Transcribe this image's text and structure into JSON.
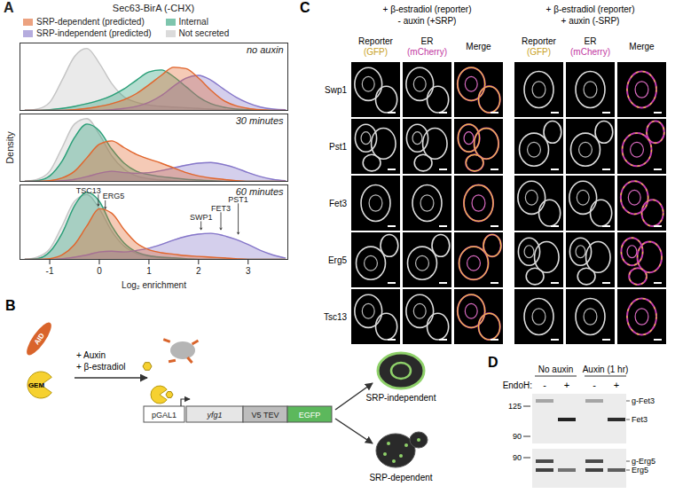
{
  "chart_data": [
    {
      "type": "area",
      "title": "Sec63-BirA (-CHX)",
      "subtitle": "no auxin",
      "legend": "top",
      "tick_labels": false,
      "xlim": [
        -1.6,
        3.8
      ],
      "ylim": [
        0,
        1
      ],
      "x": [
        -1.5,
        -1.25,
        -1,
        -0.75,
        -0.5,
        -0.25,
        0,
        0.25,
        0.5,
        0.75,
        1,
        1.25,
        1.5,
        1.75,
        2,
        2.25,
        2.5,
        2.75,
        3,
        3.25,
        3.5,
        3.75
      ],
      "series": [
        {
          "name": "SRP-dependent (predicted)",
          "color": "#e1662d",
          "values": [
            0,
            0,
            0,
            0,
            0.01,
            0.03,
            0.06,
            0.1,
            0.16,
            0.25,
            0.38,
            0.52,
            0.64,
            0.62,
            0.48,
            0.3,
            0.15,
            0.07,
            0.03,
            0.01,
            0,
            0
          ]
        },
        {
          "name": "SRP-independent (predicted)",
          "color": "#8576c9",
          "values": [
            0,
            0,
            0,
            0,
            0,
            0,
            0,
            0.01,
            0.03,
            0.06,
            0.12,
            0.22,
            0.36,
            0.48,
            0.52,
            0.45,
            0.32,
            0.2,
            0.11,
            0.05,
            0.02,
            0.01
          ]
        },
        {
          "name": "Internal",
          "color": "#2a9f78",
          "values": [
            0,
            0,
            0.01,
            0.03,
            0.06,
            0.1,
            0.15,
            0.22,
            0.32,
            0.45,
            0.57,
            0.6,
            0.5,
            0.35,
            0.2,
            0.1,
            0.05,
            0.02,
            0.01,
            0,
            0,
            0
          ]
        },
        {
          "name": "Not secreted",
          "color": "#c4c4c4",
          "values": [
            0,
            0.02,
            0.12,
            0.45,
            0.8,
            0.92,
            0.7,
            0.4,
            0.2,
            0.12,
            0.08,
            0.06,
            0.05,
            0.04,
            0.03,
            0.02,
            0.01,
            0.01,
            0,
            0,
            0,
            0
          ]
        }
      ]
    },
    {
      "type": "area",
      "subtitle": "30 minutes",
      "ylabel": "Density",
      "tick_labels": false,
      "xlim": [
        -1.6,
        3.8
      ],
      "ylim": [
        0,
        1
      ],
      "x": [
        -1.5,
        -1.25,
        -1,
        -0.75,
        -0.5,
        -0.25,
        0,
        0.25,
        0.5,
        0.75,
        1,
        1.25,
        1.5,
        1.75,
        2,
        2.25,
        2.5,
        2.75,
        3,
        3.25,
        3.5,
        3.75
      ],
      "series": [
        {
          "name": "SRP-dependent (predicted)",
          "color": "#e1662d",
          "values": [
            0,
            0,
            0.01,
            0.05,
            0.15,
            0.35,
            0.55,
            0.6,
            0.5,
            0.4,
            0.33,
            0.27,
            0.2,
            0.13,
            0.08,
            0.05,
            0.03,
            0.01,
            0,
            0,
            0,
            0
          ]
        },
        {
          "name": "SRP-independent (predicted)",
          "color": "#8576c9",
          "values": [
            0,
            0,
            0,
            0.01,
            0.03,
            0.07,
            0.12,
            0.15,
            0.13,
            0.12,
            0.13,
            0.16,
            0.2,
            0.24,
            0.27,
            0.28,
            0.25,
            0.2,
            0.13,
            0.07,
            0.03,
            0.01
          ]
        },
        {
          "name": "Internal",
          "color": "#2a9f78",
          "values": [
            0,
            0.01,
            0.08,
            0.3,
            0.65,
            0.85,
            0.75,
            0.48,
            0.27,
            0.15,
            0.1,
            0.07,
            0.05,
            0.03,
            0.02,
            0.01,
            0,
            0,
            0,
            0,
            0,
            0
          ]
        },
        {
          "name": "Not secreted",
          "color": "#c4c4c4",
          "values": [
            0,
            0.03,
            0.15,
            0.5,
            0.85,
            0.93,
            0.7,
            0.38,
            0.18,
            0.08,
            0.04,
            0.02,
            0.01,
            0,
            0,
            0,
            0,
            0,
            0,
            0,
            0,
            0
          ]
        }
      ]
    },
    {
      "type": "area",
      "subtitle": "60 minutes",
      "xlabel": "Log₂ enrichment",
      "tick_labels": "x",
      "xlim": [
        -1.6,
        3.8
      ],
      "ylim": [
        0,
        1
      ],
      "xticks": [
        -1,
        0,
        1,
        2,
        3
      ],
      "x": [
        -1.5,
        -1.25,
        -1,
        -0.75,
        -0.5,
        -0.25,
        0,
        0.25,
        0.5,
        0.75,
        1,
        1.25,
        1.5,
        1.75,
        2,
        2.25,
        2.5,
        2.75,
        3,
        3.25,
        3.5,
        3.75
      ],
      "series": [
        {
          "name": "SRP-dependent (predicted)",
          "color": "#e1662d",
          "values": [
            0,
            0,
            0.01,
            0.06,
            0.2,
            0.45,
            0.68,
            0.62,
            0.4,
            0.22,
            0.13,
            0.09,
            0.07,
            0.05,
            0.04,
            0.03,
            0.02,
            0.01,
            0,
            0,
            0,
            0
          ]
        },
        {
          "name": "SRP-independent (predicted)",
          "color": "#8576c9",
          "values": [
            0,
            0,
            0,
            0.01,
            0.03,
            0.06,
            0.1,
            0.11,
            0.1,
            0.12,
            0.15,
            0.2,
            0.26,
            0.31,
            0.34,
            0.35,
            0.32,
            0.27,
            0.2,
            0.12,
            0.06,
            0.02
          ]
        },
        {
          "name": "Internal",
          "color": "#2a9f78",
          "values": [
            0,
            0.01,
            0.1,
            0.35,
            0.72,
            0.9,
            0.78,
            0.45,
            0.22,
            0.1,
            0.05,
            0.03,
            0.02,
            0.01,
            0,
            0,
            0,
            0,
            0,
            0,
            0,
            0
          ]
        },
        {
          "name": "Not secreted",
          "color": "#c4c4c4",
          "values": [
            0,
            0.03,
            0.14,
            0.45,
            0.78,
            0.87,
            0.68,
            0.38,
            0.18,
            0.08,
            0.04,
            0.02,
            0.01,
            0,
            0,
            0,
            0,
            0,
            0,
            0,
            0,
            0
          ]
        }
      ],
      "annotations": [
        {
          "label": "TSC13",
          "x": -0.02
        },
        {
          "label": "ERG5",
          "x": 0.12
        },
        {
          "label": "SWP1",
          "x": 2.05
        },
        {
          "label": "FET3",
          "x": 2.45
        },
        {
          "label": "PST1",
          "x": 2.8
        }
      ]
    }
  ],
  "panels": {
    "A": {
      "letter": "A"
    },
    "B": {
      "letter": "B",
      "degron": "AID",
      "receptor": "GEM",
      "treatments": [
        "+ Auxin",
        "+ β-estradiol"
      ],
      "construct": [
        "pGAL1",
        "yfg1",
        "V5 TEV",
        "EGFP"
      ],
      "outcomes": [
        "SRP-independent",
        "SRP-dependent"
      ]
    },
    "C": {
      "letter": "C",
      "groups": [
        [
          "+ β-estradiol (reporter)",
          "- auxin (+SRP)"
        ],
        [
          "+ β-estradiol (reporter)",
          "+ auxin (-SRP)"
        ]
      ],
      "columns": [
        {
          "name": "Reporter",
          "channel": "(GFP)"
        },
        {
          "name": "ER",
          "channel": "(mCherry)"
        },
        {
          "name": "Merge"
        }
      ],
      "rows": [
        "Swp1",
        "Pst1",
        "Fet3",
        "Erg5",
        "Tsc13"
      ]
    },
    "D": {
      "letter": "D",
      "conditions": [
        "No auxin",
        "Auxin (1 hr)"
      ],
      "treatment_label": "EndoH:",
      "treatments": [
        "-",
        "+",
        "-",
        "+"
      ],
      "blots": [
        {
          "markers": [
            125,
            90
          ],
          "bands": [
            "g-Fet3",
            "Fet3"
          ]
        },
        {
          "markers": [
            90
          ],
          "bands": [
            "g-Erg5",
            "Erg5"
          ]
        }
      ]
    }
  }
}
